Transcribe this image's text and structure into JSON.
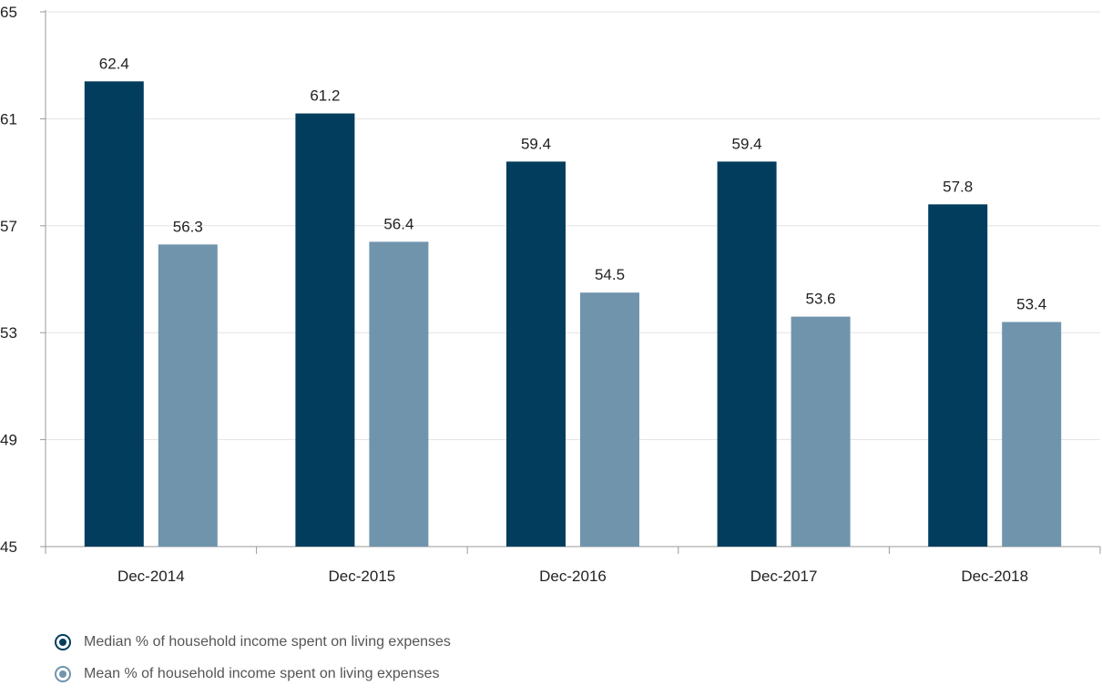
{
  "chart_data": {
    "type": "bar",
    "categories": [
      "Dec-2014",
      "Dec-2015",
      "Dec-2016",
      "Dec-2017",
      "Dec-2018"
    ],
    "series": [
      {
        "name": "Median % of household income spent on living expenses",
        "values": [
          62.4,
          61.2,
          59.4,
          59.4,
          57.8
        ],
        "color": "#033d5e"
      },
      {
        "name": "Mean % of household income spent on living expenses",
        "values": [
          56.3,
          56.4,
          54.5,
          53.6,
          53.4
        ],
        "color": "#7094ac"
      }
    ],
    "yticks": [
      "45",
      "49",
      "53",
      "57",
      "61",
      "65"
    ],
    "ylim": [
      45,
      65
    ],
    "grid": true,
    "legend": "bottom-left",
    "value_labels": [
      [
        "62.4",
        "61.2",
        "59.4",
        "59.4",
        "57.8"
      ],
      [
        "56.3",
        "56.4",
        "54.5",
        "53.6",
        "53.4"
      ]
    ]
  }
}
